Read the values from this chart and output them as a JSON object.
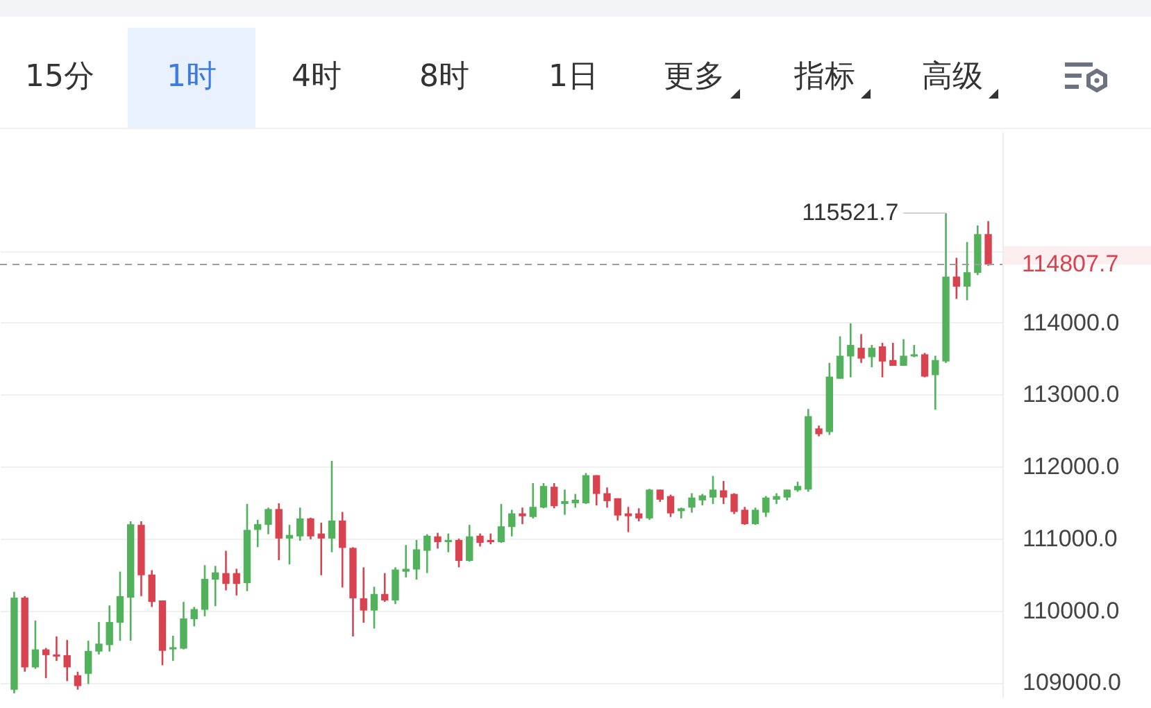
{
  "chart_data": {
    "type": "candlestick",
    "categories": [
      null,
      null,
      null,
      null,
      null,
      null,
      null,
      null,
      null,
      null,
      null,
      null,
      null,
      null,
      null,
      null,
      null,
      null,
      null,
      null,
      null,
      null,
      null,
      null,
      null,
      null,
      null,
      null,
      null,
      null,
      null,
      null,
      null,
      null,
      null,
      null,
      null,
      null,
      null,
      null,
      null,
      null,
      null,
      null,
      null,
      null,
      null,
      null,
      null,
      null,
      null,
      null,
      null,
      null,
      null,
      null,
      null,
      null,
      null,
      null,
      null,
      null,
      null,
      null,
      null,
      null,
      null,
      null,
      null,
      null,
      null,
      null,
      null,
      null,
      null,
      null,
      null,
      null,
      null,
      null,
      null,
      null,
      null,
      null,
      null,
      null,
      null,
      null,
      null,
      null,
      null,
      null,
      null
    ],
    "ohlc": [
      [
        108900,
        110260,
        108850,
        110180
      ],
      [
        110180,
        110200,
        109150,
        109210
      ],
      [
        109210,
        109860,
        109190,
        109460
      ],
      [
        109460,
        109480,
        109060,
        109380
      ],
      [
        109390,
        109640,
        109300,
        109360
      ],
      [
        109380,
        109590,
        109020,
        109210
      ],
      [
        109100,
        109150,
        108900,
        108950
      ],
      [
        109120,
        109580,
        108980,
        109440
      ],
      [
        109430,
        109840,
        109390,
        109540
      ],
      [
        109520,
        110070,
        109430,
        109840
      ],
      [
        109830,
        110540,
        109580,
        110200
      ],
      [
        110180,
        111240,
        109580,
        111200
      ],
      [
        111190,
        111240,
        110200,
        110490
      ],
      [
        110500,
        110560,
        110050,
        110120
      ],
      [
        110140,
        110140,
        109240,
        109440
      ],
      [
        109460,
        109650,
        109300,
        109490
      ],
      [
        109470,
        110120,
        109460,
        109890
      ],
      [
        109880,
        110050,
        109780,
        110020
      ],
      [
        110010,
        110630,
        109920,
        110440
      ],
      [
        110430,
        110620,
        110060,
        110530
      ],
      [
        110520,
        110830,
        110280,
        110370
      ],
      [
        110520,
        110580,
        110210,
        110370
      ],
      [
        110380,
        111480,
        110270,
        111120
      ],
      [
        111120,
        111260,
        110880,
        111200
      ],
      [
        111190,
        111430,
        111060,
        111410
      ],
      [
        111410,
        111490,
        110700,
        111000
      ],
      [
        111000,
        111190,
        110640,
        111050
      ],
      [
        111030,
        111430,
        110970,
        111280
      ],
      [
        111280,
        111290,
        110990,
        111030
      ],
      [
        111070,
        111220,
        110490,
        111000
      ],
      [
        111000,
        112080,
        110810,
        111250
      ],
      [
        111250,
        111370,
        110320,
        110870
      ],
      [
        110870,
        110880,
        109640,
        110170
      ],
      [
        110170,
        110600,
        109830,
        110000
      ],
      [
        110000,
        110330,
        109750,
        110230
      ],
      [
        110230,
        110520,
        110120,
        110140
      ],
      [
        110140,
        110600,
        110090,
        110570
      ],
      [
        110540,
        110910,
        110460,
        110580
      ],
      [
        110570,
        110980,
        110430,
        110850
      ],
      [
        110830,
        111060,
        110520,
        111040
      ],
      [
        111030,
        111080,
        110860,
        110950
      ],
      [
        110950,
        111070,
        110810,
        110980
      ],
      [
        110980,
        111000,
        110600,
        110690
      ],
      [
        110690,
        111190,
        110680,
        111030
      ],
      [
        111040,
        111070,
        110890,
        110940
      ],
      [
        110980,
        111070,
        110920,
        110950
      ],
      [
        110950,
        111480,
        110940,
        111170
      ],
      [
        111160,
        111400,
        111030,
        111350
      ],
      [
        111350,
        111430,
        111200,
        111310
      ],
      [
        111300,
        111770,
        111280,
        111440
      ],
      [
        111430,
        111770,
        111420,
        111730
      ],
      [
        111720,
        111770,
        111420,
        111450
      ],
      [
        111480,
        111680,
        111330,
        111520
      ],
      [
        111490,
        111620,
        111430,
        111540
      ],
      [
        111490,
        111910,
        111480,
        111880
      ],
      [
        111880,
        111880,
        111460,
        111620
      ],
      [
        111630,
        111710,
        111430,
        111520
      ],
      [
        111560,
        111560,
        111250,
        111320
      ],
      [
        111350,
        111440,
        111090,
        111310
      ],
      [
        111350,
        111420,
        111240,
        111280
      ],
      [
        111280,
        111690,
        111260,
        111680
      ],
      [
        111680,
        111680,
        111510,
        111540
      ],
      [
        111590,
        111610,
        111300,
        111350
      ],
      [
        111380,
        111430,
        111280,
        111420
      ],
      [
        111430,
        111630,
        111360,
        111570
      ],
      [
        111530,
        111620,
        111460,
        111600
      ],
      [
        111570,
        111870,
        111480,
        111680
      ],
      [
        111670,
        111800,
        111480,
        111570
      ],
      [
        111620,
        111630,
        111340,
        111370
      ],
      [
        111400,
        111440,
        111190,
        111200
      ],
      [
        111200,
        111430,
        111190,
        111400
      ],
      [
        111360,
        111590,
        111300,
        111570
      ],
      [
        111540,
        111630,
        111480,
        111590
      ],
      [
        111570,
        111680,
        111530,
        111680
      ],
      [
        111670,
        111790,
        111650,
        111730
      ],
      [
        111680,
        112800,
        111650,
        112700
      ],
      [
        112530,
        112570,
        112420,
        112450
      ],
      [
        112480,
        113440,
        112440,
        113250
      ],
      [
        113220,
        113810,
        113220,
        113540
      ],
      [
        113530,
        113990,
        113240,
        113690
      ],
      [
        113650,
        113840,
        113440,
        113500
      ],
      [
        113520,
        113690,
        113380,
        113650
      ],
      [
        113670,
        113720,
        113240,
        113460
      ],
      [
        113480,
        113720,
        113400,
        113400
      ],
      [
        113400,
        113770,
        113400,
        113540
      ],
      [
        113530,
        113690,
        113520,
        113560
      ],
      [
        113560,
        113580,
        113240,
        113250
      ],
      [
        113270,
        113540,
        112790,
        113480
      ],
      [
        113460,
        115521.7,
        113440,
        114640
      ],
      [
        114640,
        114900,
        114330,
        114500
      ],
      [
        114500,
        115120,
        114310,
        114700
      ],
      [
        114690,
        115350,
        114660,
        115230
      ],
      [
        115230,
        115410,
        114790,
        114807.7
      ]
    ],
    "colors": [
      "#52b15b",
      "#d9434f",
      "#52b15b",
      "#d9434f",
      "#d9434f",
      "#d9434f",
      "#d9434f",
      "#52b15b",
      "#52b15b",
      "#52b15b",
      "#52b15b",
      "#52b15b",
      "#d9434f",
      "#d9434f",
      "#d9434f",
      "#52b15b",
      "#52b15b",
      "#52b15b",
      "#52b15b",
      "#52b15b",
      "#d9434f",
      "#d9434f",
      "#52b15b",
      "#52b15b",
      "#52b15b",
      "#d9434f",
      "#52b15b",
      "#52b15b",
      "#d9434f",
      "#d9434f",
      "#52b15b",
      "#d9434f",
      "#d9434f",
      "#d9434f",
      "#52b15b",
      "#d9434f",
      "#52b15b",
      "#52b15b",
      "#52b15b",
      "#52b15b",
      "#d9434f",
      "#52b15b",
      "#d9434f",
      "#52b15b",
      "#d9434f",
      "#d9434f",
      "#52b15b",
      "#52b15b",
      "#d9434f",
      "#52b15b",
      "#52b15b",
      "#d9434f",
      "#52b15b",
      "#52b15b",
      "#52b15b",
      "#d9434f",
      "#d9434f",
      "#d9434f",
      "#d9434f",
      "#d9434f",
      "#52b15b",
      "#d9434f",
      "#d9434f",
      "#52b15b",
      "#52b15b",
      "#52b15b",
      "#52b15b",
      "#d9434f",
      "#d9434f",
      "#d9434f",
      "#52b15b",
      "#52b15b",
      "#52b15b",
      "#52b15b",
      "#52b15b",
      "#52b15b",
      "#d9434f",
      "#52b15b",
      "#52b15b",
      "#52b15b",
      "#d9434f",
      "#52b15b",
      "#d9434f",
      "#d9434f",
      "#52b15b",
      "#52b15b",
      "#d9434f",
      "#52b15b",
      "#52b15b",
      "#d9434f",
      "#52b15b",
      "#52b15b",
      "#d9434f"
    ],
    "ylim": [
      108800,
      116650
    ],
    "yticks": [
      {
        "value": 109000,
        "label": "109000.0"
      },
      {
        "value": 110000,
        "label": "110000.0"
      },
      {
        "value": 111000,
        "label": "111000.0"
      },
      {
        "value": 112000,
        "label": "112000.0"
      },
      {
        "value": 113000,
        "label": "113000.0"
      },
      {
        "value": 114000,
        "label": "114000.0"
      },
      {
        "value": 115000,
        "label": null
      }
    ],
    "grid": "y",
    "tick_labels": "y",
    "ref_lines": [
      {
        "axis": "y",
        "value": 114807.7,
        "label": "114807.7",
        "color": "#9e9e9e",
        "line_style": "dashed"
      }
    ],
    "annotations": [
      "15分",
      "1时",
      "4时",
      "8时",
      "1日",
      "更多",
      "指标",
      "高级",
      "115521.7"
    ]
  }
}
